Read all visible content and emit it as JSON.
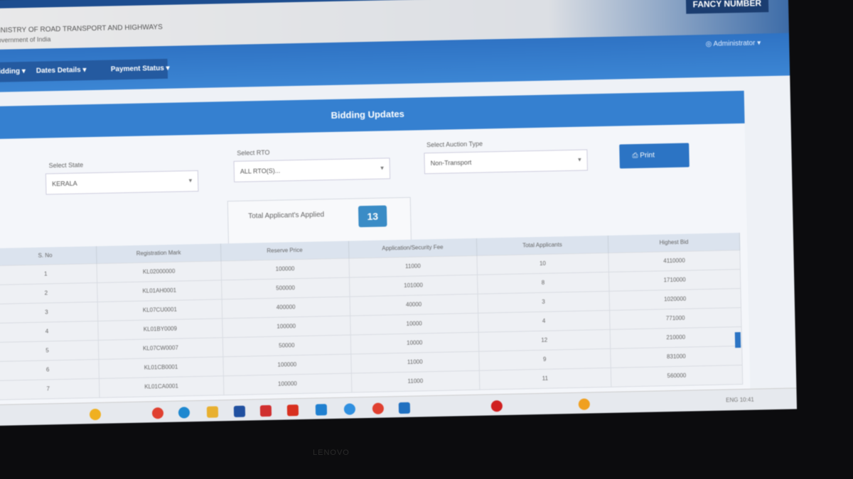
{
  "header": {
    "ministry": "MINISTRY OF ROAD TRANSPORT AND HIGHWAYS",
    "government": "Government of India",
    "fancy_number": "FANCY NUMBER",
    "user": "Administrator"
  },
  "nav": {
    "items": [
      {
        "label": "Bidding ▾"
      },
      {
        "label": "Dates Details ▾"
      },
      {
        "label": "Payment Status ▾"
      }
    ]
  },
  "card": {
    "title": "Bidding Updates"
  },
  "filters": {
    "state": {
      "label": "Select State",
      "value": "KERALA"
    },
    "rto": {
      "label": "Select RTO",
      "value": "ALL RTO(S)..."
    },
    "auction_type": {
      "label": "Select Auction Type",
      "value": "Non-Transport"
    },
    "action_button": "Print"
  },
  "stat": {
    "label": "Total Applicant's Applied",
    "value": "13"
  },
  "table": {
    "headers": [
      "S. No",
      "Registration Mark",
      "Reserve Price",
      "Application/Security Fee",
      "Total Applicants",
      "Highest Bid"
    ],
    "rows": [
      [
        "1",
        "KL02000000",
        "100000",
        "11000",
        "10",
        "4110000"
      ],
      [
        "2",
        "KL01AH0001",
        "500000",
        "101000",
        "8",
        "1710000"
      ],
      [
        "3",
        "KL07CU0001",
        "400000",
        "40000",
        "3",
        "1020000"
      ],
      [
        "4",
        "KL01BY0009",
        "100000",
        "10000",
        "4",
        "771000"
      ],
      [
        "5",
        "KL07CW0007",
        "50000",
        "10000",
        "12",
        "210000"
      ],
      [
        "6",
        "KL01CB0001",
        "100000",
        "11000",
        "9",
        "831000"
      ],
      [
        "7",
        "KL01CA0001",
        "100000",
        "11000",
        "11",
        "560000"
      ]
    ]
  },
  "taskbar": {
    "tray_text": "ENG 10:41"
  },
  "monitor_brand": "LENOVO",
  "colors": {
    "primary": "#3580d0",
    "dark": "#1b3d70"
  }
}
